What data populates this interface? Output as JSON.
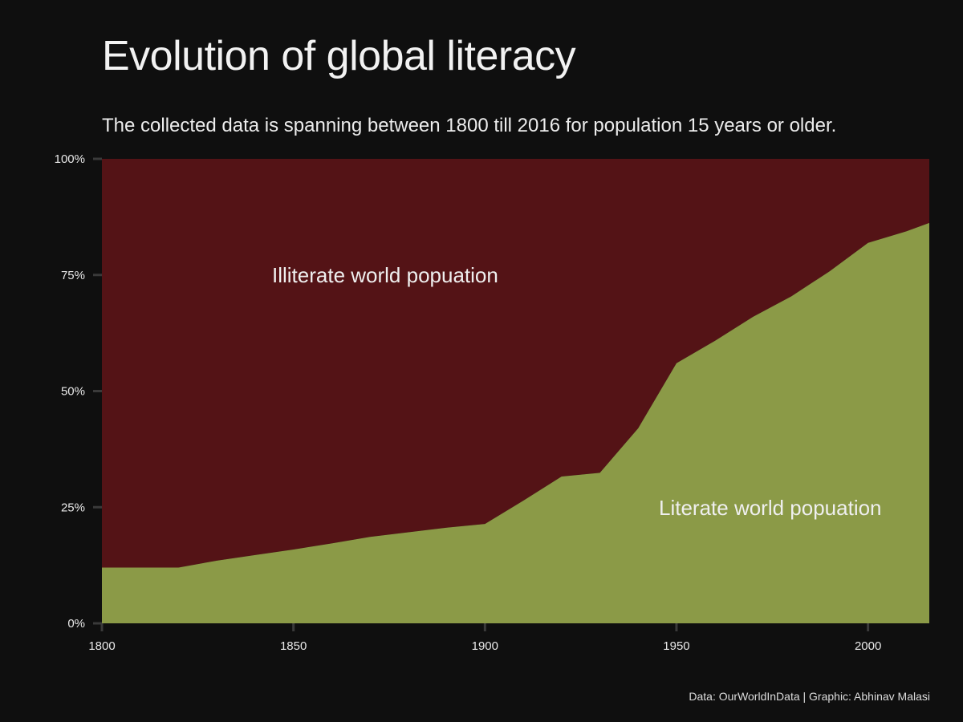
{
  "chart_data": {
    "type": "area",
    "title": "Evolution of global literacy",
    "subtitle": "The collected data is spanning between 1800 till 2016 for population 15 years or older.",
    "caption": "Data: OurWorldInData | Graphic: Abhinav Malasi",
    "xlabel": "",
    "ylabel": "",
    "xlim": [
      1800,
      2016
    ],
    "ylim": [
      0,
      100
    ],
    "x_ticks": [
      1800,
      1850,
      1900,
      1950,
      2000
    ],
    "y_ticks": [
      0,
      25,
      50,
      75,
      100
    ],
    "y_tick_labels": [
      "0%",
      "25%",
      "50%",
      "75%",
      "100%"
    ],
    "x": [
      1800,
      1820,
      1830,
      1840,
      1850,
      1860,
      1870,
      1880,
      1890,
      1900,
      1910,
      1920,
      1930,
      1940,
      1950,
      1960,
      1970,
      1980,
      1990,
      2000,
      2010,
      2016
    ],
    "series": [
      {
        "label": "Literate world popuation",
        "color": "#8b9a47",
        "values": [
          12,
          12,
          13.5,
          14.7,
          15.9,
          17.2,
          18.6,
          19.6,
          20.6,
          21.4,
          26.4,
          31.6,
          32.4,
          42,
          56,
          60.8,
          66,
          70.4,
          75.8,
          81.9,
          84.4,
          86.2
        ]
      },
      {
        "label": "Illiterate world popuation",
        "color": "#541316",
        "values": [
          88,
          88,
          86.5,
          85.3,
          84.1,
          82.8,
          81.4,
          80.4,
          79.4,
          78.6,
          73.6,
          68.4,
          67.6,
          58,
          44,
          39.2,
          34,
          29.6,
          24.2,
          18.1,
          15.6,
          13.8
        ]
      }
    ],
    "grid": false,
    "legend": "none"
  }
}
